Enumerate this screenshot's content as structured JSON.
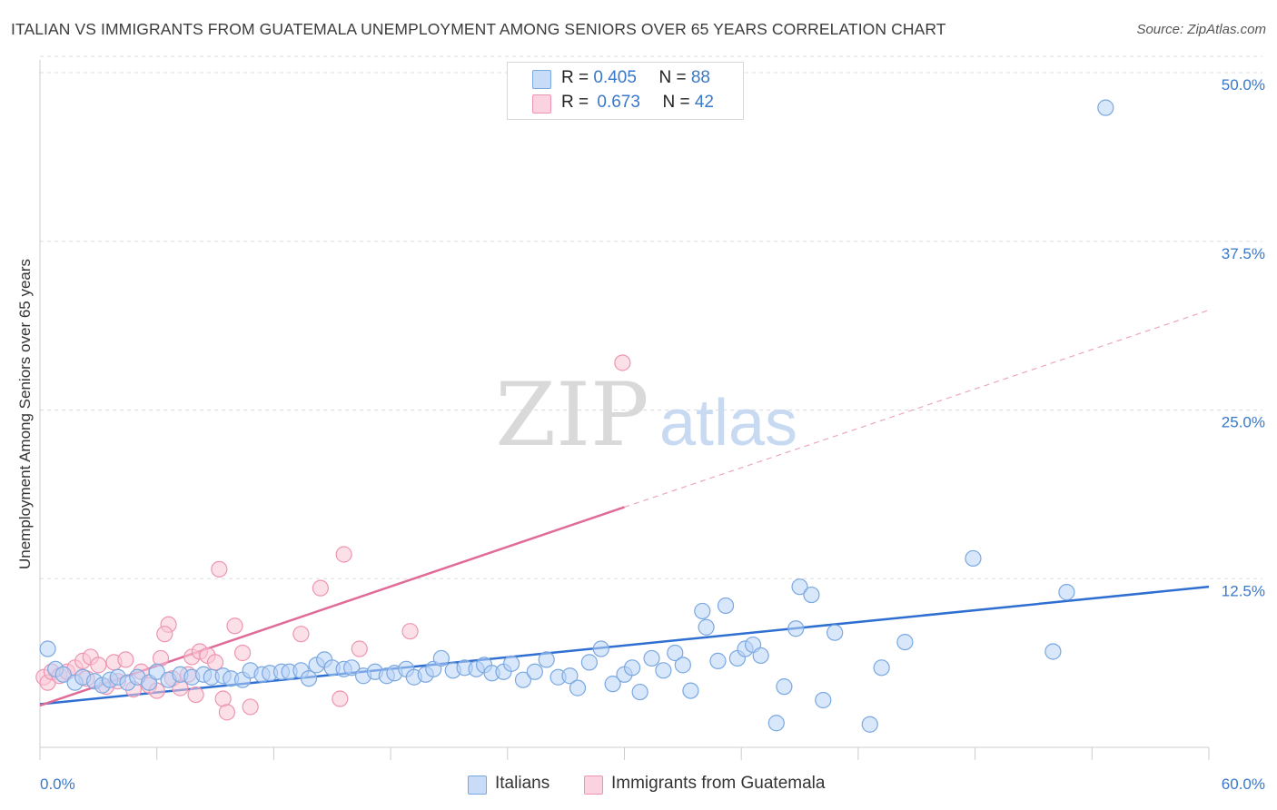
{
  "header": {
    "title": "ITALIAN VS IMMIGRANTS FROM GUATEMALA UNEMPLOYMENT AMONG SENIORS OVER 65 YEARS CORRELATION CHART",
    "source": "Source: ZipAtlas.com"
  },
  "watermark": {
    "zip": "ZIP",
    "atlas": "atlas"
  },
  "legend_top": {
    "rows": [
      {
        "r_label": "R = ",
        "r_value": "0.405",
        "n_label": "N = ",
        "n_value": "88"
      },
      {
        "r_label": "R = ",
        "r_value": "0.673",
        "n_label": "N = ",
        "n_value": "42"
      }
    ]
  },
  "colors": {
    "italians_fill": "#b9d3f7",
    "italians_stroke": "#7aa8e0",
    "italians_line": "#2f6fd1",
    "guatemala_fill": "#f9c6d6",
    "guatemala_stroke": "#ee95b2",
    "guatemala_line": "#e06b98",
    "tick_label": "#3a78c9",
    "grid": "#dddddd"
  },
  "chart_data": {
    "type": "scatter",
    "title": "ITALIAN VS IMMIGRANTS FROM GUATEMALA UNEMPLOYMENT AMONG SENIORS OVER 65 YEARS CORRELATION CHART",
    "xlabel": "",
    "ylabel": "Unemployment Among Seniors over 65 years",
    "xlim": [
      0,
      60
    ],
    "ylim": [
      0,
      51
    ],
    "x_tick_labels": [
      "0.0%",
      "60.0%"
    ],
    "y_tick_labels": [
      "12.5%",
      "25.0%",
      "37.5%",
      "50.0%"
    ],
    "y_ticks": [
      12.5,
      25.0,
      37.5,
      50.0
    ],
    "grid": "horizontal dashed",
    "legend_position": "top-center and bottom",
    "series": [
      {
        "name": "Italians",
        "color": "#7aa8e0",
        "R": 0.405,
        "N": 88,
        "trend": {
          "x": [
            0,
            60
          ],
          "y": [
            3.2,
            11.9
          ],
          "style": "solid"
        },
        "points": [
          [
            0.4,
            7.3
          ],
          [
            0.8,
            5.8
          ],
          [
            1.2,
            5.4
          ],
          [
            1.8,
            4.8
          ],
          [
            2.2,
            5.2
          ],
          [
            2.8,
            4.9
          ],
          [
            3.2,
            4.6
          ],
          [
            3.6,
            5.0
          ],
          [
            4.0,
            5.2
          ],
          [
            4.5,
            4.8
          ],
          [
            5.0,
            5.2
          ],
          [
            5.6,
            4.8
          ],
          [
            6.0,
            5.6
          ],
          [
            6.6,
            5.0
          ],
          [
            7.2,
            5.4
          ],
          [
            7.8,
            5.2
          ],
          [
            8.4,
            5.4
          ],
          [
            8.8,
            5.2
          ],
          [
            9.4,
            5.3
          ],
          [
            9.8,
            5.1
          ],
          [
            10.4,
            5.0
          ],
          [
            10.8,
            5.7
          ],
          [
            11.4,
            5.4
          ],
          [
            11.8,
            5.5
          ],
          [
            12.4,
            5.6
          ],
          [
            12.8,
            5.6
          ],
          [
            13.4,
            5.7
          ],
          [
            13.8,
            5.1
          ],
          [
            14.2,
            6.1
          ],
          [
            14.6,
            6.5
          ],
          [
            15.0,
            5.9
          ],
          [
            15.6,
            5.8
          ],
          [
            16.0,
            5.9
          ],
          [
            16.6,
            5.3
          ],
          [
            17.2,
            5.6
          ],
          [
            17.8,
            5.3
          ],
          [
            18.2,
            5.5
          ],
          [
            18.8,
            5.8
          ],
          [
            19.2,
            5.2
          ],
          [
            19.8,
            5.4
          ],
          [
            20.2,
            5.8
          ],
          [
            20.6,
            6.6
          ],
          [
            21.2,
            5.7
          ],
          [
            21.8,
            5.9
          ],
          [
            22.4,
            5.8
          ],
          [
            22.8,
            6.1
          ],
          [
            23.2,
            5.5
          ],
          [
            23.8,
            5.6
          ],
          [
            24.2,
            6.2
          ],
          [
            24.8,
            5.0
          ],
          [
            25.4,
            5.6
          ],
          [
            26.0,
            6.5
          ],
          [
            26.6,
            5.2
          ],
          [
            27.2,
            5.3
          ],
          [
            27.6,
            4.4
          ],
          [
            28.2,
            6.3
          ],
          [
            28.8,
            7.3
          ],
          [
            29.4,
            4.7
          ],
          [
            30.0,
            5.4
          ],
          [
            30.4,
            5.9
          ],
          [
            30.8,
            4.1
          ],
          [
            31.4,
            6.6
          ],
          [
            32.0,
            5.7
          ],
          [
            32.6,
            7.0
          ],
          [
            33.0,
            6.1
          ],
          [
            33.4,
            4.2
          ],
          [
            34.0,
            10.1
          ],
          [
            34.8,
            6.4
          ],
          [
            34.2,
            8.9
          ],
          [
            35.2,
            10.5
          ],
          [
            35.8,
            6.6
          ],
          [
            36.2,
            7.3
          ],
          [
            36.6,
            7.6
          ],
          [
            37.0,
            6.8
          ],
          [
            37.8,
            1.8
          ],
          [
            38.2,
            4.5
          ],
          [
            38.8,
            8.8
          ],
          [
            39.0,
            11.9
          ],
          [
            39.6,
            11.3
          ],
          [
            40.2,
            3.5
          ],
          [
            40.8,
            8.5
          ],
          [
            42.6,
            1.7
          ],
          [
            43.2,
            5.9
          ],
          [
            44.4,
            7.8
          ],
          [
            47.9,
            14.0
          ],
          [
            52.0,
            7.1
          ],
          [
            52.7,
            11.5
          ],
          [
            54.7,
            47.4
          ]
        ]
      },
      {
        "name": "Immigrants from Guatemala",
        "color": "#ee95b2",
        "R": 0.673,
        "N": 42,
        "trend": {
          "x": [
            0,
            30.0,
            60
          ],
          "y": [
            3.1,
            17.8,
            32.4
          ],
          "style": "solid to 30.0, dashed beyond"
        },
        "points": [
          [
            0.2,
            5.2
          ],
          [
            0.4,
            4.8
          ],
          [
            0.6,
            5.6
          ],
          [
            1.0,
            5.3
          ],
          [
            1.4,
            5.6
          ],
          [
            1.8,
            5.9
          ],
          [
            2.2,
            6.4
          ],
          [
            2.4,
            5.1
          ],
          [
            2.6,
            6.7
          ],
          [
            3.0,
            6.1
          ],
          [
            3.4,
            4.5
          ],
          [
            3.8,
            6.3
          ],
          [
            4.0,
            4.9
          ],
          [
            4.4,
            6.5
          ],
          [
            4.8,
            4.3
          ],
          [
            5.2,
            5.6
          ],
          [
            5.6,
            4.6
          ],
          [
            6.0,
            4.2
          ],
          [
            6.2,
            6.6
          ],
          [
            6.6,
            9.1
          ],
          [
            6.8,
            5.1
          ],
          [
            7.2,
            4.4
          ],
          [
            7.6,
            5.4
          ],
          [
            7.8,
            6.7
          ],
          [
            8.0,
            3.9
          ],
          [
            8.2,
            7.1
          ],
          [
            8.6,
            6.8
          ],
          [
            9.0,
            6.3
          ],
          [
            9.2,
            13.2
          ],
          [
            9.4,
            3.6
          ],
          [
            9.6,
            2.6
          ],
          [
            10.0,
            9.0
          ],
          [
            10.4,
            7.0
          ],
          [
            10.8,
            3.0
          ],
          [
            13.4,
            8.4
          ],
          [
            14.4,
            11.8
          ],
          [
            15.4,
            3.6
          ],
          [
            15.6,
            14.3
          ],
          [
            16.4,
            7.3
          ],
          [
            19.0,
            8.6
          ],
          [
            29.9,
            28.5
          ],
          [
            6.4,
            8.4
          ]
        ]
      }
    ]
  },
  "bottom_legend": {
    "items": [
      {
        "label": "Italians"
      },
      {
        "label": "Immigrants from Guatemala"
      }
    ]
  }
}
